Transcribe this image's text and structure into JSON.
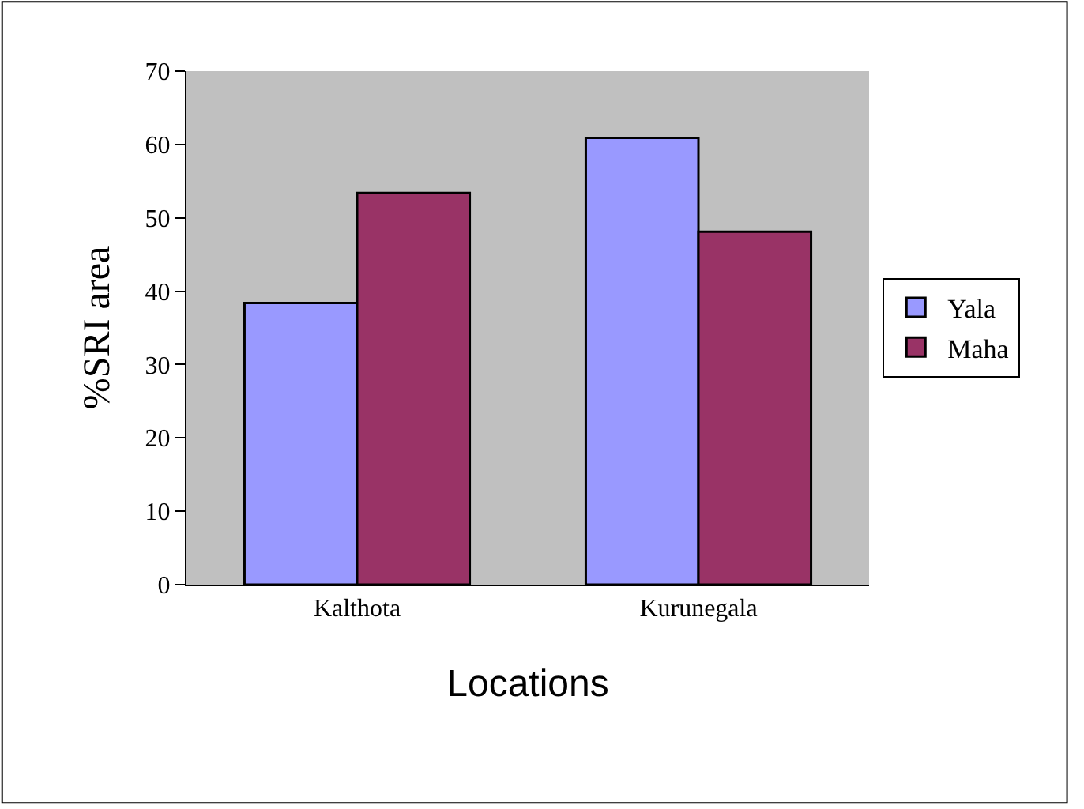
{
  "chart_data": {
    "type": "bar",
    "xlabel": "Locations",
    "ylabel": "%SRI area",
    "categories": [
      "Kalthota",
      "Kurunegala"
    ],
    "series": [
      {
        "name": "Yala",
        "color": "#9999ff",
        "values": [
          38.4,
          60.9
        ]
      },
      {
        "name": "Maha",
        "color": "#993366",
        "values": [
          53.4,
          48.1
        ]
      }
    ],
    "ylim": [
      0,
      70
    ],
    "yticks": [
      0,
      10,
      20,
      30,
      40,
      50,
      60,
      70
    ],
    "grid": false,
    "legend": "right"
  }
}
